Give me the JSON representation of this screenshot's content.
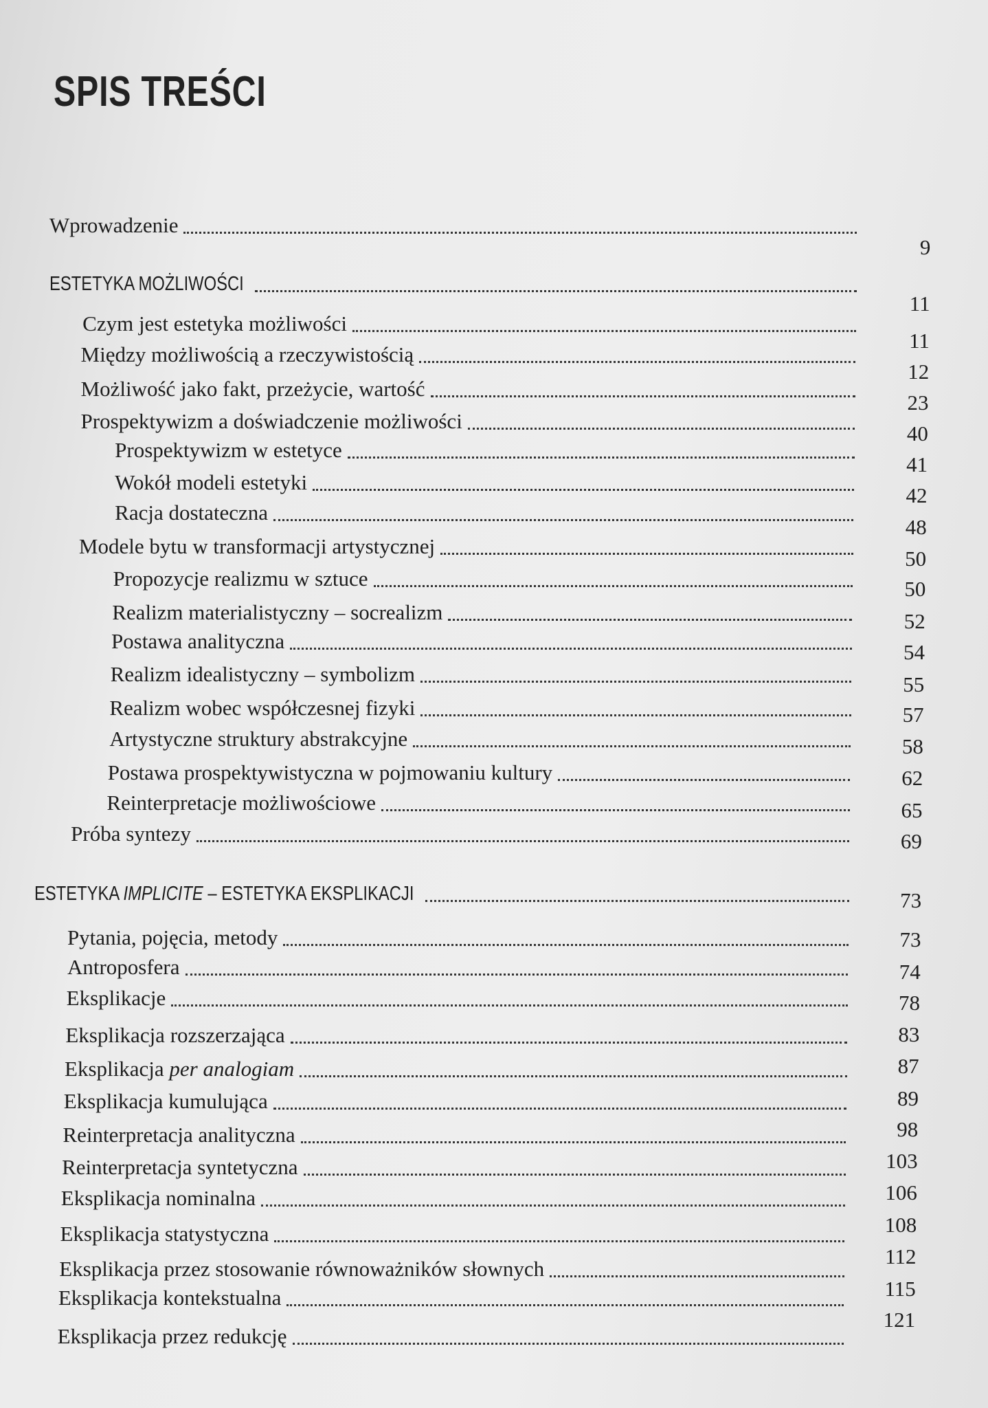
{
  "title": "SPIS TREŚCI",
  "entries": [
    {
      "parts": [
        {
          "t": "Wprowadzenie"
        }
      ],
      "page": "9"
    },
    {
      "heading": true,
      "parts": [
        {
          "t": "ESTETYKA MOŻLIWOŚCI"
        }
      ],
      "page": "11"
    },
    {
      "parts": [
        {
          "t": "Czym jest estetyka możliwości"
        }
      ],
      "page": "11"
    },
    {
      "parts": [
        {
          "t": "Między możliwością a rzeczywistością"
        }
      ],
      "page": "12"
    },
    {
      "parts": [
        {
          "t": "Możliwość jako fakt, przeżycie, wartość"
        }
      ],
      "page": "23"
    },
    {
      "parts": [
        {
          "t": "Prospektywizm a doświadczenie możliwości"
        }
      ],
      "page": "40"
    },
    {
      "parts": [
        {
          "t": "Prospektywizm w estetyce"
        }
      ],
      "page": "41"
    },
    {
      "parts": [
        {
          "t": "Wokół modeli estetyki"
        }
      ],
      "page": "42"
    },
    {
      "parts": [
        {
          "t": "Racja dostateczna"
        }
      ],
      "page": "48"
    },
    {
      "parts": [
        {
          "t": "Modele bytu w transformacji artystycznej"
        }
      ],
      "page": "50"
    },
    {
      "parts": [
        {
          "t": "Propozycje realizmu w sztuce"
        }
      ],
      "page": "50"
    },
    {
      "parts": [
        {
          "t": "Realizm materialistyczny – socrealizm"
        }
      ],
      "page": "52"
    },
    {
      "parts": [
        {
          "t": "Postawa analityczna"
        }
      ],
      "page": "54"
    },
    {
      "parts": [
        {
          "t": "Realizm idealistyczny – symbolizm"
        }
      ],
      "page": "55"
    },
    {
      "parts": [
        {
          "t": "Realizm wobec współczesnej fizyki"
        }
      ],
      "page": "57"
    },
    {
      "parts": [
        {
          "t": "Artystyczne struktury abstrakcyjne"
        }
      ],
      "page": "58"
    },
    {
      "parts": [
        {
          "t": "Postawa prospektywistyczna w pojmowaniu kultury"
        }
      ],
      "page": "62"
    },
    {
      "parts": [
        {
          "t": "Reinterpretacje możliwościowe"
        }
      ],
      "page": "65"
    },
    {
      "parts": [
        {
          "t": "Próba syntezy"
        }
      ],
      "page": "69"
    },
    {
      "heading": true,
      "parts": [
        {
          "t": "ESTETYKA "
        },
        {
          "t": "IMPLICITE",
          "i": true
        },
        {
          "t": " – ESTETYKA EKSPLIKACJI"
        }
      ],
      "page": "73"
    },
    {
      "parts": [
        {
          "t": "Pytania, pojęcia, metody"
        }
      ],
      "page": "73"
    },
    {
      "parts": [
        {
          "t": "Antroposfera"
        }
      ],
      "page": "74"
    },
    {
      "parts": [
        {
          "t": "Eksplikacje"
        }
      ],
      "page": "78"
    },
    {
      "parts": [
        {
          "t": "Eksplikacja rozszerzająca"
        }
      ],
      "page": "83"
    },
    {
      "parts": [
        {
          "t": "Eksplikacja "
        },
        {
          "t": "per analogiam",
          "i": true
        }
      ],
      "page": "87"
    },
    {
      "parts": [
        {
          "t": "Eksplikacja kumulująca"
        }
      ],
      "page": "89"
    },
    {
      "parts": [
        {
          "t": "Reinterpretacja analityczna"
        }
      ],
      "page": "98"
    },
    {
      "parts": [
        {
          "t": "Reinterpretacja syntetyczna"
        }
      ],
      "page": "103"
    },
    {
      "parts": [
        {
          "t": "Eksplikacja nominalna"
        }
      ],
      "page": "106"
    },
    {
      "parts": [
        {
          "t": "Eksplikacja statystyczna"
        }
      ],
      "page": "108"
    },
    {
      "parts": [
        {
          "t": "Eksplikacja przez stosowanie równoważników słownych"
        }
      ],
      "page": "112"
    },
    {
      "parts": [
        {
          "t": "Eksplikacja kontekstualna"
        }
      ],
      "page": "115"
    },
    {
      "parts": [
        {
          "t": "Eksplikacja przez redukcję"
        }
      ],
      "page": "121"
    }
  ]
}
